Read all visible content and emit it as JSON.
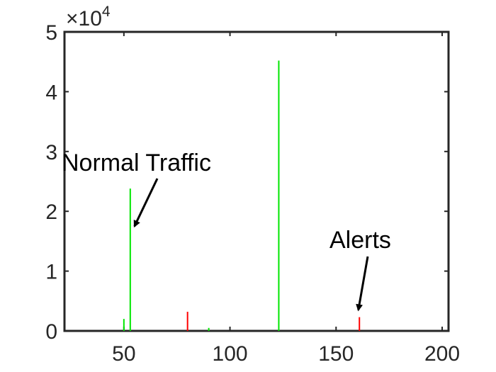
{
  "chart_data": {
    "type": "bar",
    "title": "",
    "xlabel": "",
    "ylabel": "",
    "xlim": [
      22,
      203
    ],
    "ylim": [
      0,
      50000
    ],
    "grid": false,
    "legend": "none",
    "y_scale_factor": {
      "base": "×10",
      "exponent": "4"
    },
    "xticks": [
      50,
      100,
      150,
      200
    ],
    "yticks": [
      0,
      10000,
      20000,
      30000,
      40000,
      50000
    ],
    "ytick_labels": [
      "0",
      "1",
      "2",
      "3",
      "4",
      "5"
    ],
    "series": [
      {
        "color": "#00e600",
        "points": [
          {
            "x": 50,
            "y": 2000
          },
          {
            "x": 53,
            "y": 23800
          },
          {
            "x": 90,
            "y": 500
          },
          {
            "x": 123,
            "y": 45200
          }
        ]
      },
      {
        "color": "#ff0000",
        "points": [
          {
            "x": 80,
            "y": 3200
          },
          {
            "x": 161,
            "y": 2300
          }
        ]
      }
    ],
    "annotations": [
      {
        "text": "Normal Traffic",
        "arrow_to": {
          "x": 55,
          "y": 17500
        }
      },
      {
        "text": "Alerts",
        "arrow_to": {
          "x": 160.5,
          "y": 3500
        }
      }
    ]
  }
}
